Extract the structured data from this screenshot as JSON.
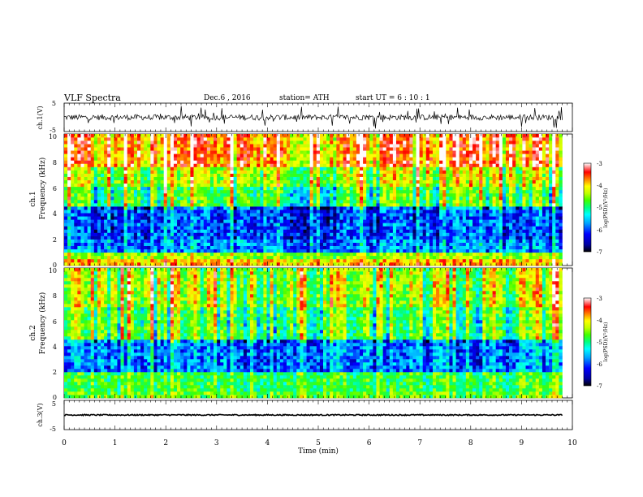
{
  "header": {
    "title": "VLF  Spectra",
    "date": "Dec.6  , 2016",
    "station": "station= ATH",
    "start": "start  UT  =   6  : 10 : 1"
  },
  "chart_data": [
    {
      "type": "line",
      "panel": "ch1-waveform",
      "ylabel": "ch.1(V)",
      "ylim": [
        -5,
        5
      ],
      "ytick_labels": [
        "5",
        "-5"
      ],
      "xlim": [
        0,
        10
      ],
      "description_values": {
        "mean": 0,
        "typical_noise_amplitude_V": 1,
        "spike_amplitude_V": 4,
        "data_end_min": 9.8
      }
    },
    {
      "type": "heatmap",
      "panel": "ch1-spectrogram",
      "ylabel_top": "ch.1",
      "ylabel": "Frequency  (kHz)",
      "ylim": [
        0,
        10
      ],
      "ytick_labels": [
        "10",
        "8",
        "6",
        "4",
        "2",
        "0"
      ],
      "xlim": [
        0,
        10
      ],
      "data_end_min": 9.8,
      "colorbar": {
        "label": "log(PSD)(V²/Hz)",
        "range": [
          -7,
          -3
        ],
        "tick_labels": [
          "-3",
          "-4",
          "-5",
          "-6",
          "-7"
        ]
      },
      "band_levels": [
        {
          "f": [
            0.0,
            0.5
          ],
          "level": -4.0
        },
        {
          "f": [
            0.5,
            1.0
          ],
          "level": -4.6
        },
        {
          "f": [
            1.0,
            2.0
          ],
          "level": -6.0
        },
        {
          "f": [
            2.0,
            4.5
          ],
          "level": -6.2
        },
        {
          "f": [
            4.5,
            6.0
          ],
          "level": -5.1
        },
        {
          "f": [
            6.0,
            7.5
          ],
          "level": -4.6
        },
        {
          "f": [
            7.5,
            10.0
          ],
          "level": -3.8
        }
      ]
    },
    {
      "type": "heatmap",
      "panel": "ch2-spectrogram",
      "ylabel_top": "ch.2",
      "ylabel": "Frequency  (kHz)",
      "ylim": [
        0,
        10
      ],
      "ytick_labels": [
        "10",
        "8",
        "6",
        "4",
        "2",
        "0"
      ],
      "xlim": [
        0,
        10
      ],
      "data_end_min": 9.8,
      "colorbar": {
        "label": "log(PSD)(V²/Hz)",
        "range": [
          -7,
          -3
        ],
        "tick_labels": [
          "-3",
          "-4",
          "-5",
          "-6",
          "-7"
        ]
      },
      "band_levels": [
        {
          "f": [
            0.0,
            0.5
          ],
          "level": -4.8
        },
        {
          "f": [
            0.5,
            2.0
          ],
          "level": -5.0
        },
        {
          "f": [
            2.0,
            4.5
          ],
          "level": -6.0
        },
        {
          "f": [
            4.5,
            7.0
          ],
          "level": -5.0
        },
        {
          "f": [
            7.0,
            10.0
          ],
          "level": -4.6
        }
      ]
    },
    {
      "type": "line",
      "panel": "ch3-waveform",
      "ylabel": "ch.3(V)",
      "ylim": [
        -5,
        5
      ],
      "ytick_labels": [
        "5",
        "-5"
      ],
      "xlabel": "Time  (min)",
      "xlim": [
        0,
        10
      ],
      "xtick_labels": [
        "0",
        "1",
        "2",
        "3",
        "4",
        "5",
        "6",
        "7",
        "8",
        "9",
        "10"
      ],
      "description_values": {
        "mean": 0,
        "amplitude_V": 0.2,
        "data_end_min": 9.8
      }
    }
  ],
  "colors": {
    "colormap": [
      "#000000",
      "#0000a0",
      "#0000ff",
      "#00a0ff",
      "#00ffff",
      "#00ff80",
      "#40ff00",
      "#c0ff00",
      "#ffff00",
      "#ff8000",
      "#ff0000",
      "#ffffff"
    ]
  }
}
